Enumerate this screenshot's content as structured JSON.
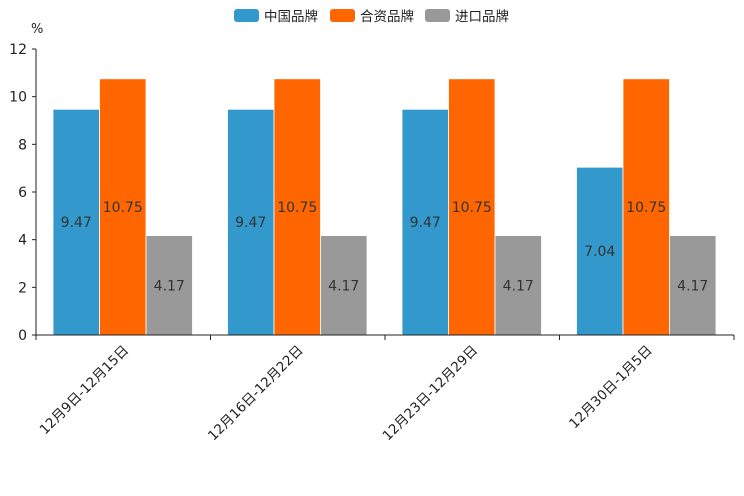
{
  "chart_data": {
    "type": "bar",
    "title": "",
    "xlabel": "",
    "ylabel": "",
    "unit": "%",
    "ylim": [
      0,
      12
    ],
    "yticks": [
      "0",
      "2",
      "4",
      "6",
      "8",
      "10",
      "12"
    ],
    "grid": false,
    "legend_position": "top-center",
    "categories": [
      "12月9日-12月15日",
      "12月16日-12月22日",
      "12月23日-12月29日",
      "12月30日-1月5日"
    ],
    "series": [
      {
        "name": "中国品牌",
        "color": "#3399CC",
        "values": [
          9.47,
          9.47,
          9.47,
          7.04
        ],
        "labels": [
          "9.47",
          "9.47",
          "9.47",
          "7.04"
        ]
      },
      {
        "name": "合资品牌",
        "color": "#FF6600",
        "values": [
          10.75,
          10.75,
          10.75,
          10.75
        ],
        "labels": [
          "10.75",
          "10.75",
          "10.75",
          "10.75"
        ]
      },
      {
        "name": "进口品牌",
        "color": "#999999",
        "values": [
          4.17,
          4.17,
          4.17,
          4.17
        ],
        "labels": [
          "4.17",
          "4.17",
          "4.17",
          "4.17"
        ]
      }
    ]
  }
}
